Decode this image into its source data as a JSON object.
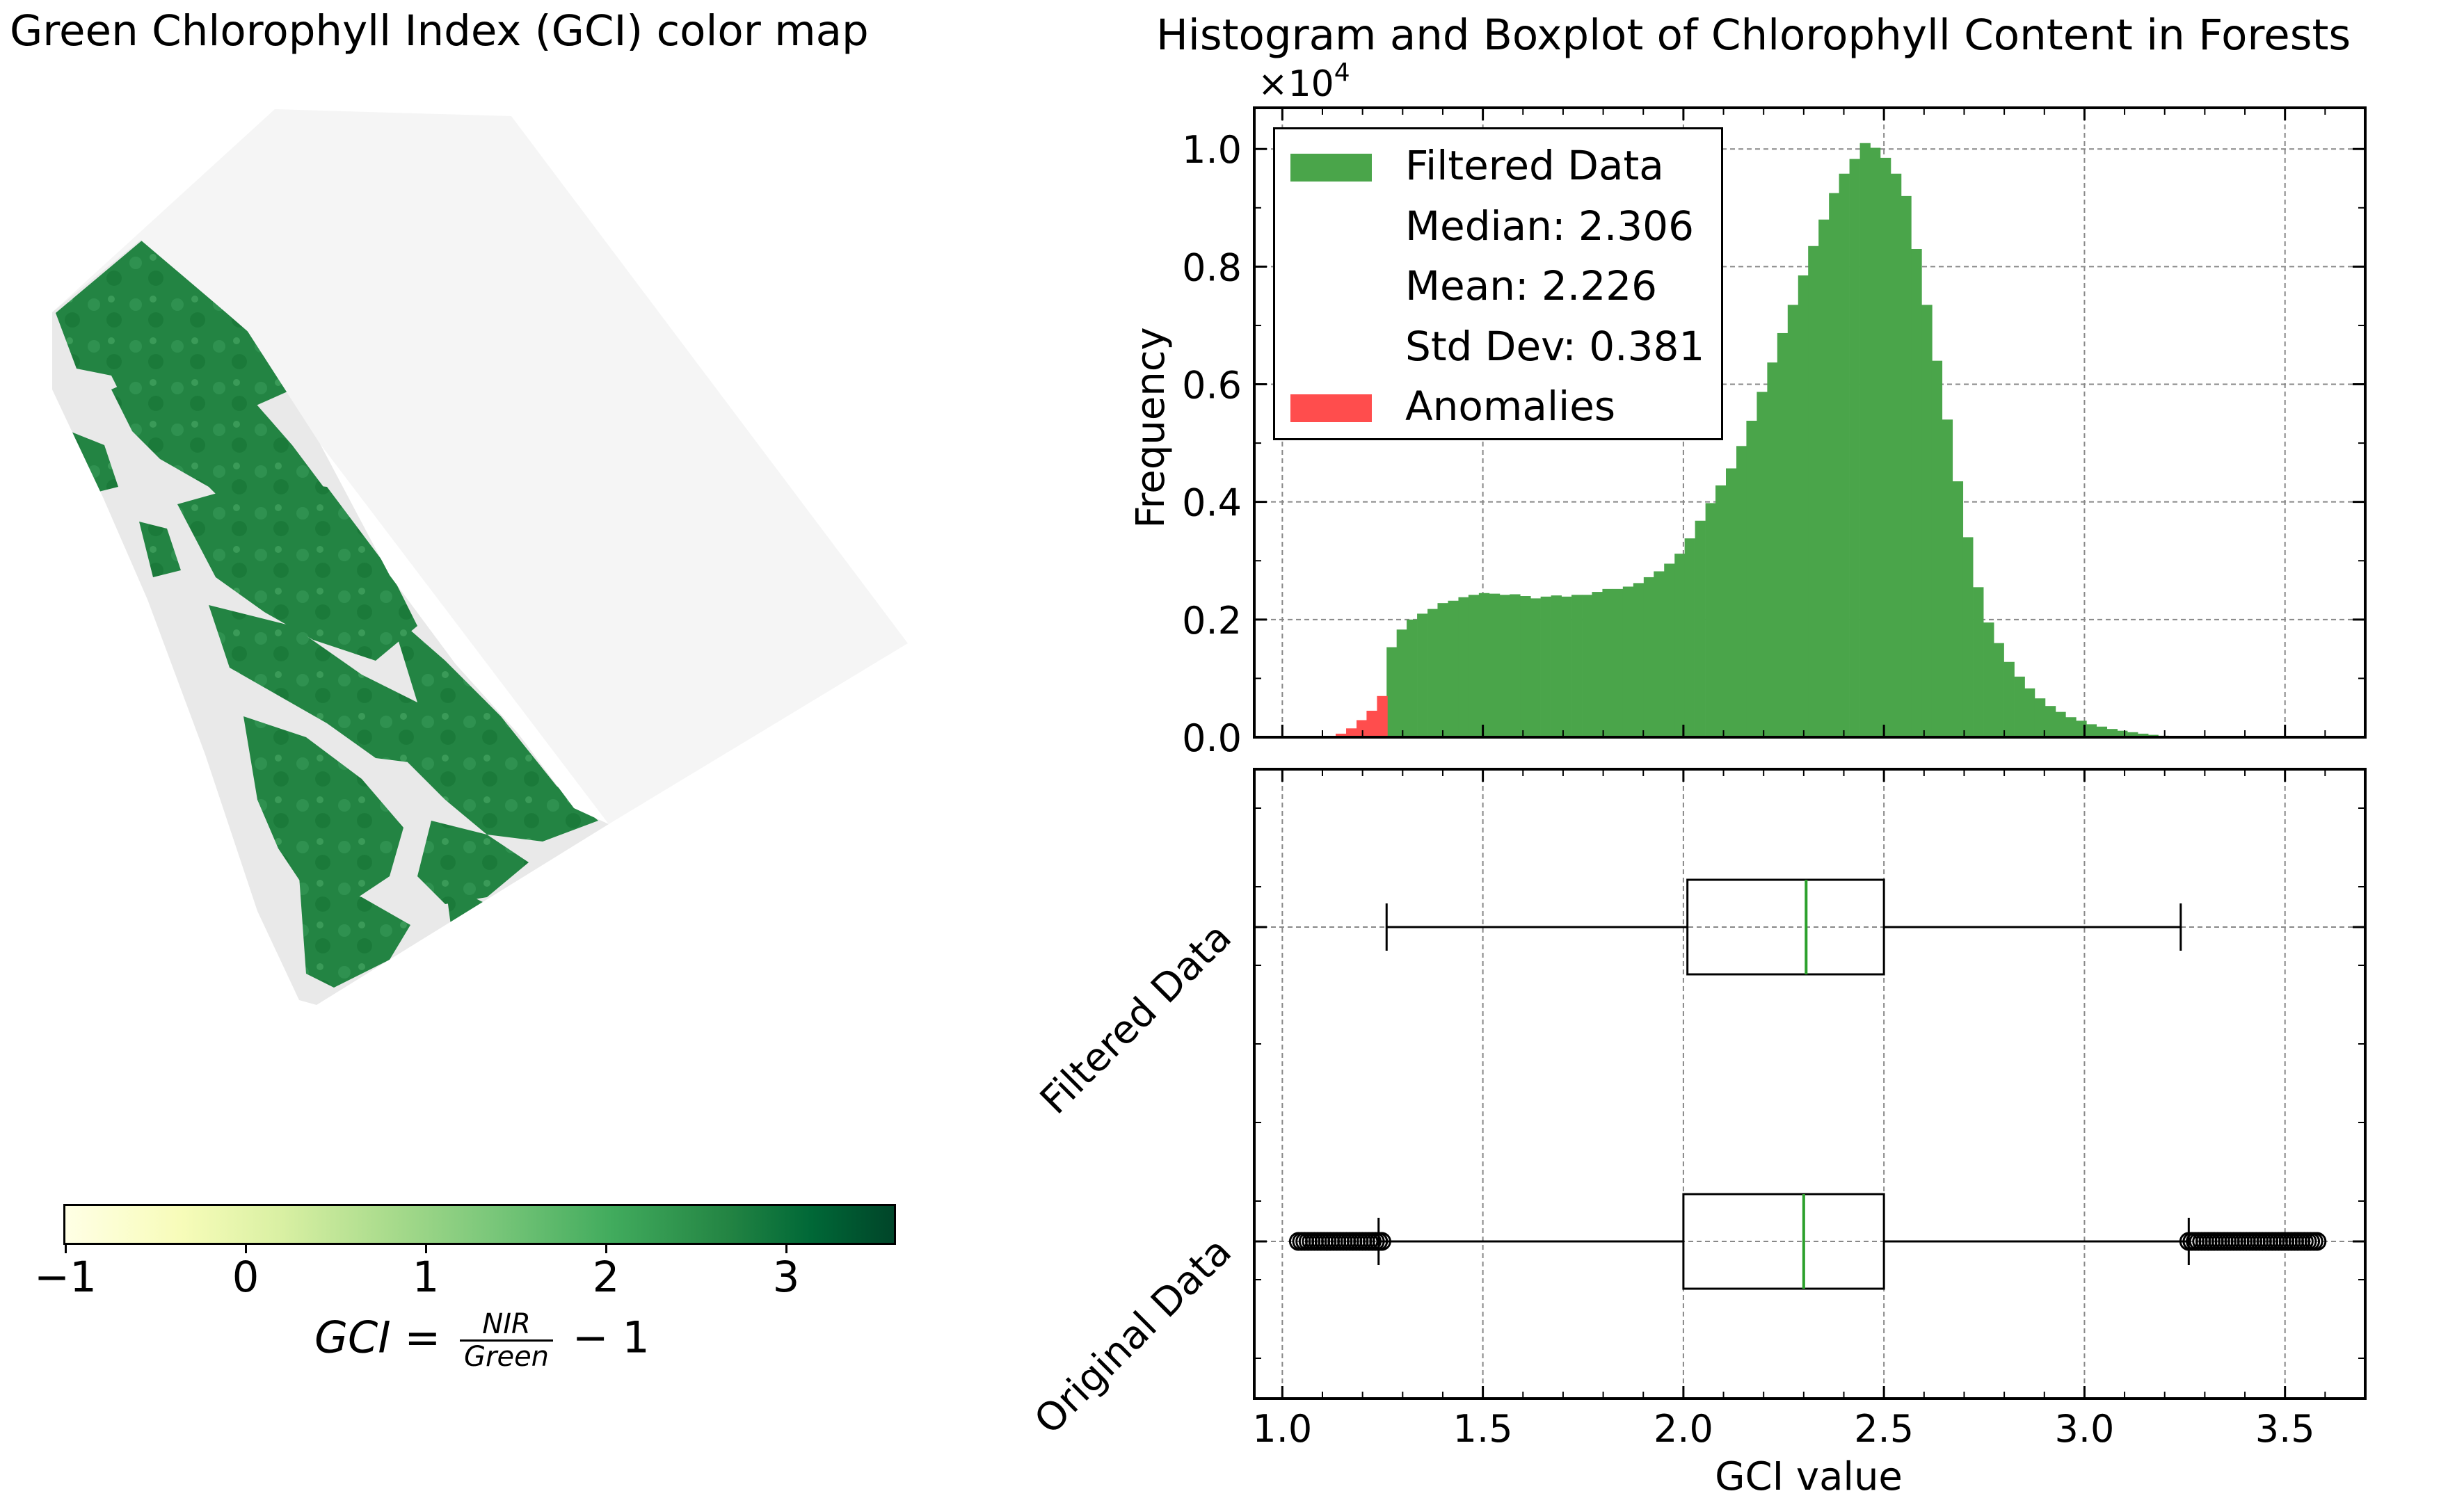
{
  "map": {
    "title": "Green Chlorophyll Index (GCI) color map",
    "colorbar": {
      "ticks": [
        "−1",
        "0",
        "1",
        "2",
        "3"
      ],
      "range": [
        -1,
        3.6
      ],
      "colormap": "Greens (YlGn)"
    },
    "formula": {
      "lhs": "GCI",
      "equals": "=",
      "numerator": "NIR",
      "denominator": "Green",
      "rest": "− 1"
    },
    "colors": {
      "forest": "#238443",
      "background": "#f5f5f5",
      "bare": "#e8e8e8"
    }
  },
  "right_title": "Histogram and Boxplot of Chlorophyll Content in Forests",
  "legend": {
    "filtered": "Filtered Data",
    "median": "Median: 2.306",
    "mean": "Mean: 2.226",
    "std": "Std Dev: 0.381",
    "anomalies": "Anomalies"
  },
  "colors": {
    "filtered": "#4aa54a",
    "anomalies": "#ff4d4d",
    "median_line": "#2ca02c",
    "grid": "#888888"
  },
  "chart_data": [
    {
      "type": "bar",
      "title": "Histogram and Boxplot of Chlorophyll Content in Forests",
      "xlabel": "",
      "ylabel": "Frequency",
      "y_scale_label": "×10",
      "y_scale_exp": "4",
      "xlim": [
        0.93,
        3.7
      ],
      "ylim": [
        0,
        10700
      ],
      "yticks": [
        "0.0",
        "0.2",
        "0.4",
        "0.6",
        "0.8",
        "1.0"
      ],
      "ytick_values": [
        0,
        2000,
        4000,
        6000,
        8000,
        10000
      ],
      "bin_width": 0.0257,
      "grid": true,
      "series": [
        {
          "name": "Filtered Data",
          "bins": [
            [
              1.26,
              1530
            ],
            [
              1.285,
              1830
            ],
            [
              1.31,
              2000
            ],
            [
              1.336,
              2100
            ],
            [
              1.362,
              2180
            ],
            [
              1.387,
              2280
            ],
            [
              1.413,
              2320
            ],
            [
              1.439,
              2380
            ],
            [
              1.464,
              2420
            ],
            [
              1.49,
              2450
            ],
            [
              1.516,
              2440
            ],
            [
              1.541,
              2420
            ],
            [
              1.567,
              2430
            ],
            [
              1.593,
              2400
            ],
            [
              1.618,
              2360
            ],
            [
              1.644,
              2390
            ],
            [
              1.67,
              2410
            ],
            [
              1.695,
              2390
            ],
            [
              1.721,
              2420
            ],
            [
              1.747,
              2420
            ],
            [
              1.772,
              2470
            ],
            [
              1.798,
              2520
            ],
            [
              1.824,
              2520
            ],
            [
              1.849,
              2560
            ],
            [
              1.875,
              2620
            ],
            [
              1.901,
              2720
            ],
            [
              1.926,
              2820
            ],
            [
              1.952,
              2950
            ],
            [
              1.978,
              3120
            ],
            [
              2.003,
              3380
            ],
            [
              2.029,
              3680
            ],
            [
              2.055,
              3980
            ],
            [
              2.08,
              4280
            ],
            [
              2.106,
              4570
            ],
            [
              2.132,
              4950
            ],
            [
              2.157,
              5380
            ],
            [
              2.183,
              5870
            ],
            [
              2.209,
              6370
            ],
            [
              2.234,
              6870
            ],
            [
              2.26,
              7350
            ],
            [
              2.286,
              7850
            ],
            [
              2.311,
              8350
            ],
            [
              2.337,
              8800
            ],
            [
              2.363,
              9250
            ],
            [
              2.388,
              9580
            ],
            [
              2.414,
              9830
            ],
            [
              2.44,
              10100
            ],
            [
              2.465,
              10020
            ],
            [
              2.491,
              9850
            ],
            [
              2.517,
              9580
            ],
            [
              2.542,
              9200
            ],
            [
              2.568,
              8300
            ],
            [
              2.594,
              7350
            ],
            [
              2.619,
              6400
            ],
            [
              2.645,
              5400
            ],
            [
              2.671,
              4350
            ],
            [
              2.696,
              3400
            ],
            [
              2.722,
              2550
            ],
            [
              2.748,
              1950
            ],
            [
              2.773,
              1600
            ],
            [
              2.799,
              1280
            ],
            [
              2.825,
              1030
            ],
            [
              2.85,
              830
            ],
            [
              2.876,
              660
            ],
            [
              2.902,
              530
            ],
            [
              2.927,
              430
            ],
            [
              2.953,
              340
            ],
            [
              2.979,
              280
            ],
            [
              3.004,
              220
            ],
            [
              3.03,
              180
            ],
            [
              3.056,
              140
            ],
            [
              3.081,
              110
            ],
            [
              3.107,
              85
            ],
            [
              3.133,
              60
            ],
            [
              3.158,
              40
            ],
            [
              3.184,
              25
            ],
            [
              3.21,
              15
            ],
            [
              3.235,
              8
            ]
          ]
        },
        {
          "name": "Anomalies",
          "bins": [
            [
              1.133,
              60
            ],
            [
              1.159,
              150
            ],
            [
              1.185,
              290
            ],
            [
              1.21,
              450
            ],
            [
              1.236,
              700
            ]
          ]
        }
      ],
      "stats": {
        "median": 2.306,
        "mean": 2.226,
        "std": 0.381
      }
    },
    {
      "type": "box",
      "xlabel": "GCI value",
      "xlim": [
        0.93,
        3.7
      ],
      "xticks": [
        "1.0",
        "1.5",
        "2.0",
        "2.5",
        "3.0",
        "3.5"
      ],
      "xtick_values": [
        1.0,
        1.5,
        2.0,
        2.5,
        3.0,
        3.5
      ],
      "categories": [
        "Filtered Data",
        "Original Data"
      ],
      "grid": true,
      "boxes": [
        {
          "name": "Filtered Data",
          "whisker_low": 1.26,
          "q1": 2.01,
          "median": 2.306,
          "q3": 2.5,
          "whisker_high": 3.24,
          "outliers": []
        },
        {
          "name": "Original Data",
          "whisker_low": 1.24,
          "q1": 2.0,
          "median": 2.3,
          "q3": 2.5,
          "whisker_high": 3.26,
          "outliers_low_range": [
            1.04,
            1.25
          ],
          "outliers_high_range": [
            3.26,
            3.58
          ]
        }
      ]
    }
  ]
}
